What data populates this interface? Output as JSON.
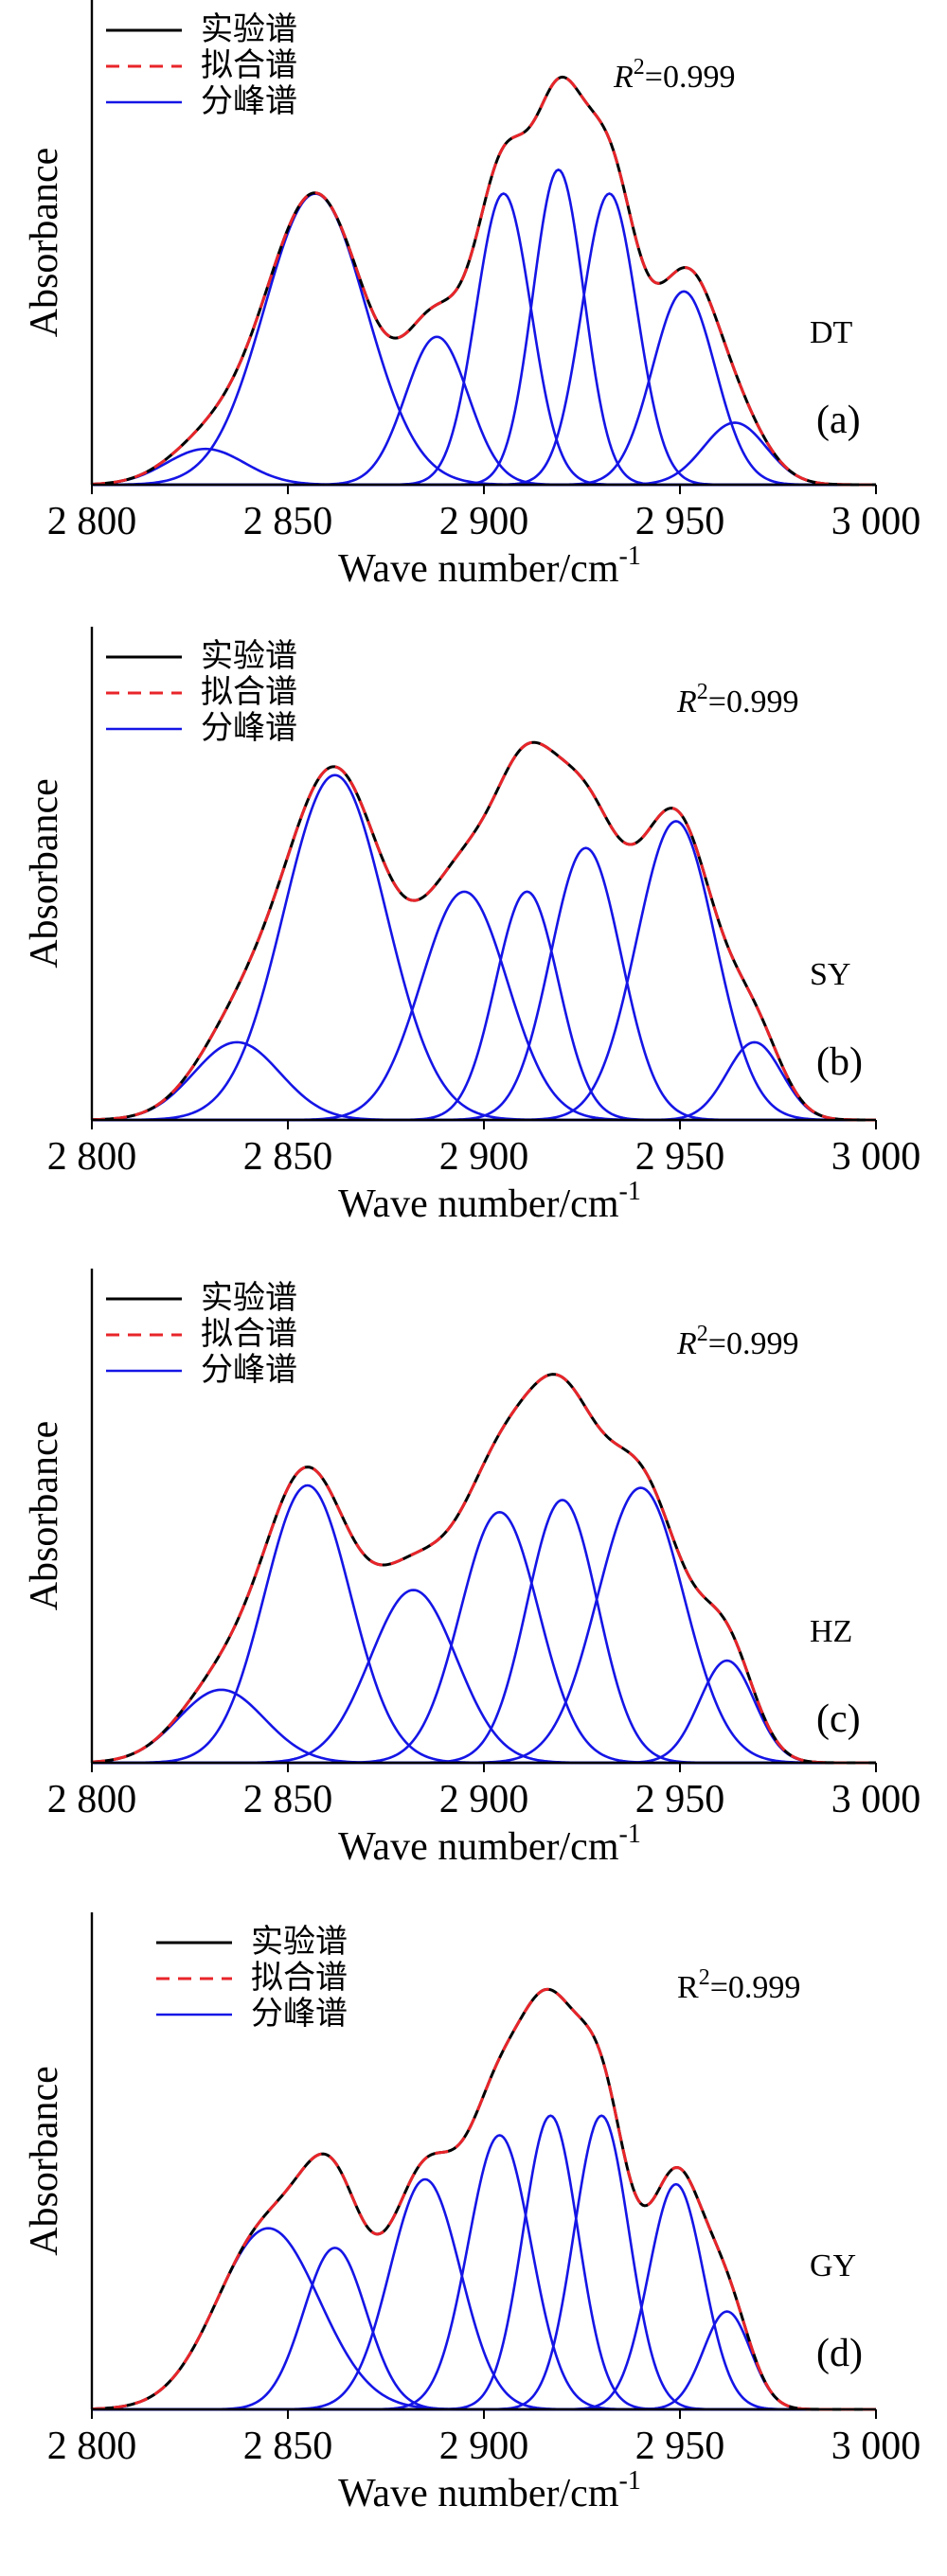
{
  "chart_data": [
    {
      "type": "line",
      "panel_label": "(a)",
      "sample": "DT",
      "r2_prefix": "R",
      "r2_sup": "2",
      "r2_value": "=0.999",
      "xlabel_text": "Wave number/cm",
      "xlabel_sup": "-1",
      "ylabel": "Absorbance",
      "xlim": [
        2800,
        3000
      ],
      "xticks": [
        2800,
        2850,
        2900,
        2950,
        3000
      ],
      "xtick_labels": [
        "2 800",
        "2 850",
        "2 900",
        "2 950",
        "3 000"
      ],
      "ylim": [
        0,
        1.0
      ],
      "legend": [
        "实验谱",
        "拟合谱",
        "分峰谱"
      ],
      "colors": {
        "experimental": "#000000",
        "fitted": "#e8252a",
        "peaks": "#1515e6"
      },
      "peaks": [
        {
          "center": 2829,
          "height": 0.075,
          "sigma": 10
        },
        {
          "center": 2857,
          "height": 0.61,
          "sigma": 13
        },
        {
          "center": 2888,
          "height": 0.31,
          "sigma": 8
        },
        {
          "center": 2905,
          "height": 0.61,
          "sigma": 7
        },
        {
          "center": 2919,
          "height": 0.66,
          "sigma": 6.5
        },
        {
          "center": 2932,
          "height": 0.61,
          "sigma": 7
        },
        {
          "center": 2951,
          "height": 0.405,
          "sigma": 8
        },
        {
          "center": 2964,
          "height": 0.13,
          "sigma": 8
        }
      ]
    },
    {
      "type": "line",
      "panel_label": "(b)",
      "sample": "SY",
      "r2_prefix": "R",
      "r2_sup": "2",
      "r2_value": "=0.999",
      "xlabel_text": "Wave number/cm",
      "xlabel_sup": "-1",
      "ylabel": "Absorbance",
      "xlim": [
        2800,
        3000
      ],
      "xticks": [
        2800,
        2850,
        2900,
        2950,
        3000
      ],
      "xtick_labels": [
        "2 800",
        "2 850",
        "2 900",
        "2 950",
        "3 000"
      ],
      "ylim": [
        0,
        1.0
      ],
      "legend": [
        "实验谱",
        "拟合谱",
        "分峰谱"
      ],
      "colors": {
        "experimental": "#000000",
        "fitted": "#e8252a",
        "peaks": "#1515e6"
      },
      "peaks": [
        {
          "center": 2837,
          "height": 0.16,
          "sigma": 11
        },
        {
          "center": 2862,
          "height": 0.71,
          "sigma": 13
        },
        {
          "center": 2895,
          "height": 0.47,
          "sigma": 11
        },
        {
          "center": 2911,
          "height": 0.47,
          "sigma": 8
        },
        {
          "center": 2926,
          "height": 0.56,
          "sigma": 9
        },
        {
          "center": 2949,
          "height": 0.615,
          "sigma": 10
        },
        {
          "center": 2969,
          "height": 0.16,
          "sigma": 7
        }
      ]
    },
    {
      "type": "line",
      "panel_label": "(c)",
      "sample": "HZ",
      "r2_prefix": "R",
      "r2_sup": "2",
      "r2_value": "=0.999",
      "xlabel_text": "Wave number/cm",
      "xlabel_sup": "-1",
      "ylabel": "Absorbance",
      "xlim": [
        2800,
        3000
      ],
      "xticks": [
        2800,
        2850,
        2900,
        2950,
        3000
      ],
      "xtick_labels": [
        "2 800",
        "2 850",
        "2 900",
        "2 950",
        "3 000"
      ],
      "ylim": [
        0,
        1.0
      ],
      "legend": [
        "实验谱",
        "拟合谱",
        "分峰谱"
      ],
      "colors": {
        "experimental": "#000000",
        "fitted": "#e8252a",
        "peaks": "#1515e6"
      },
      "peaks": [
        {
          "center": 2833,
          "height": 0.15,
          "sigma": 11
        },
        {
          "center": 2855,
          "height": 0.57,
          "sigma": 11
        },
        {
          "center": 2882,
          "height": 0.355,
          "sigma": 11
        },
        {
          "center": 2904,
          "height": 0.515,
          "sigma": 10
        },
        {
          "center": 2920,
          "height": 0.54,
          "sigma": 9
        },
        {
          "center": 2940,
          "height": 0.565,
          "sigma": 11
        },
        {
          "center": 2962,
          "height": 0.21,
          "sigma": 7
        }
      ]
    },
    {
      "type": "line",
      "panel_label": "(d)",
      "sample": "GY",
      "r2_prefix": "R",
      "r2_sup": "2",
      "r2_value": "=0.999",
      "xlabel_text": "Wave number/cm",
      "xlabel_sup": "-1",
      "ylabel": "Absorbance",
      "xlim": [
        2800,
        3000
      ],
      "xticks": [
        2800,
        2850,
        2900,
        2950,
        3000
      ],
      "xtick_labels": [
        "2 800",
        "2 850",
        "2 900",
        "2 950",
        "3 000"
      ],
      "ylim": [
        0,
        1.0
      ],
      "legend": [
        "实验谱",
        "拟合谱",
        "分峰谱"
      ],
      "colors": {
        "experimental": "#000000",
        "fitted": "#e8252a",
        "peaks": "#1515e6"
      },
      "peaks": [
        {
          "center": 2845,
          "height": 0.37,
          "sigma": 13
        },
        {
          "center": 2862,
          "height": 0.33,
          "sigma": 8
        },
        {
          "center": 2885,
          "height": 0.47,
          "sigma": 9
        },
        {
          "center": 2904,
          "height": 0.56,
          "sigma": 8
        },
        {
          "center": 2917,
          "height": 0.6,
          "sigma": 7
        },
        {
          "center": 2930,
          "height": 0.6,
          "sigma": 7
        },
        {
          "center": 2949,
          "height": 0.46,
          "sigma": 7
        },
        {
          "center": 2962,
          "height": 0.2,
          "sigma": 6
        }
      ]
    }
  ]
}
